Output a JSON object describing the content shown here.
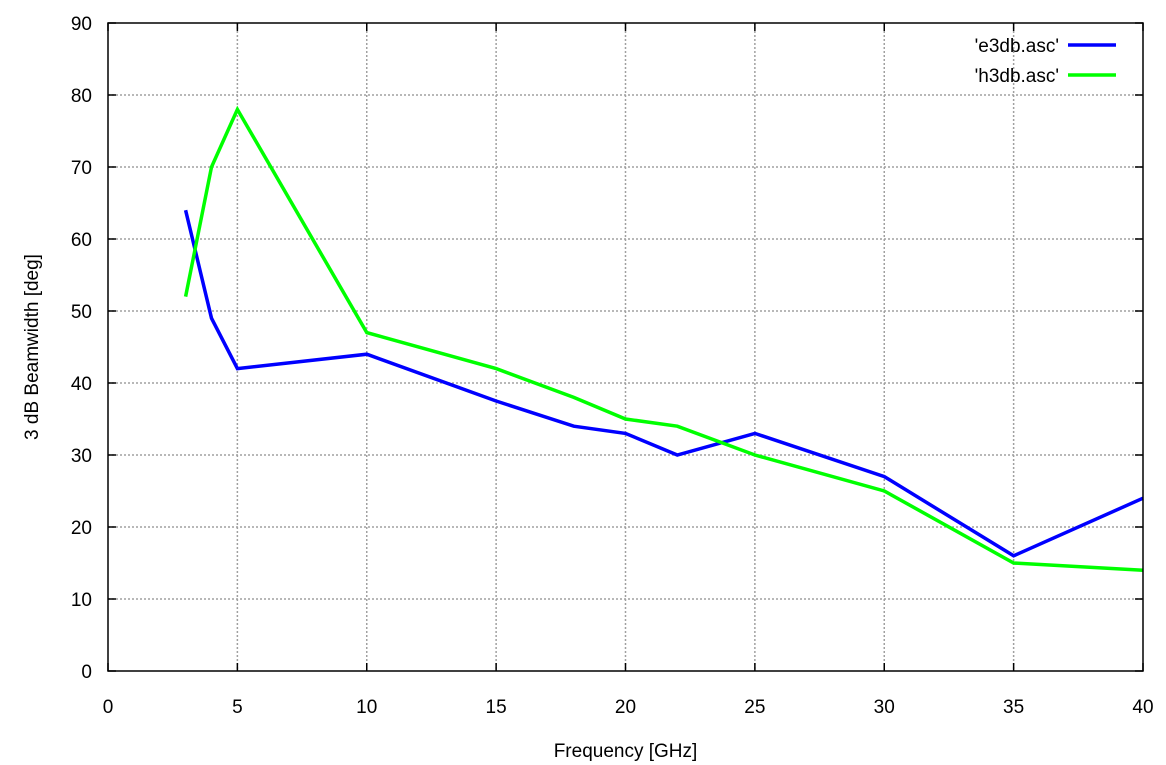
{
  "chart_data": {
    "type": "line",
    "xlabel": "Frequency [GHz]",
    "ylabel": "3 dB Beamwidth [deg]",
    "xlim": [
      0,
      40
    ],
    "ylim": [
      0,
      90
    ],
    "xticks": [
      0,
      5,
      10,
      15,
      20,
      25,
      30,
      35,
      40
    ],
    "yticks": [
      0,
      10,
      20,
      30,
      40,
      50,
      60,
      70,
      80,
      90
    ],
    "grid": true,
    "legend_position": "top-right",
    "series": [
      {
        "name": "'e3db.asc'",
        "color": "#0000ff",
        "x": [
          3,
          4,
          5,
          10,
          15,
          18,
          20,
          22,
          25,
          30,
          35,
          40
        ],
        "y": [
          64,
          49,
          42,
          44,
          37.5,
          34,
          33,
          30,
          33,
          27,
          16,
          24
        ]
      },
      {
        "name": "'h3db.asc'",
        "color": "#00ff00",
        "x": [
          3,
          4,
          5,
          10,
          15,
          18,
          20,
          22,
          25,
          30,
          35,
          40
        ],
        "y": [
          52,
          70,
          78,
          47,
          42,
          38,
          35,
          34,
          30,
          25,
          15,
          14
        ]
      }
    ]
  }
}
